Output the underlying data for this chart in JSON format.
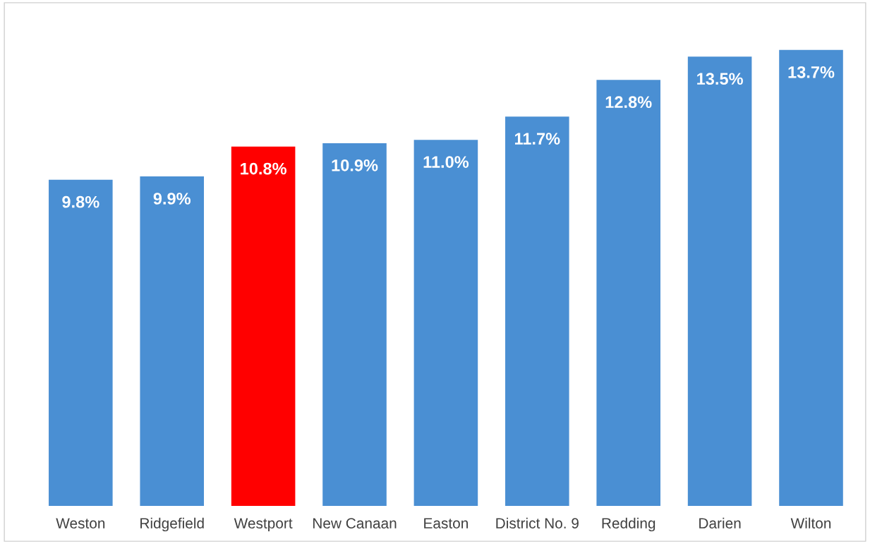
{
  "chart_data": {
    "type": "bar",
    "categories": [
      "Weston",
      "Ridgefield",
      "Westport",
      "New Canaan",
      "Easton",
      "District No. 9",
      "Redding",
      "Darien",
      "Wilton"
    ],
    "values": [
      9.8,
      9.9,
      10.8,
      10.9,
      11.0,
      11.7,
      12.8,
      13.5,
      13.7
    ],
    "value_labels": [
      "9.8%",
      "9.9%",
      "10.8%",
      "10.9%",
      "11.0%",
      "11.7%",
      "12.8%",
      "13.5%",
      "13.7%"
    ],
    "colors": [
      "#4a8fd3",
      "#4a8fd3",
      "#ff0000",
      "#4a8fd3",
      "#4a8fd3",
      "#4a8fd3",
      "#4a8fd3",
      "#4a8fd3",
      "#4a8fd3"
    ],
    "tick_labels": "x",
    "grid": false,
    "legend": false
  }
}
